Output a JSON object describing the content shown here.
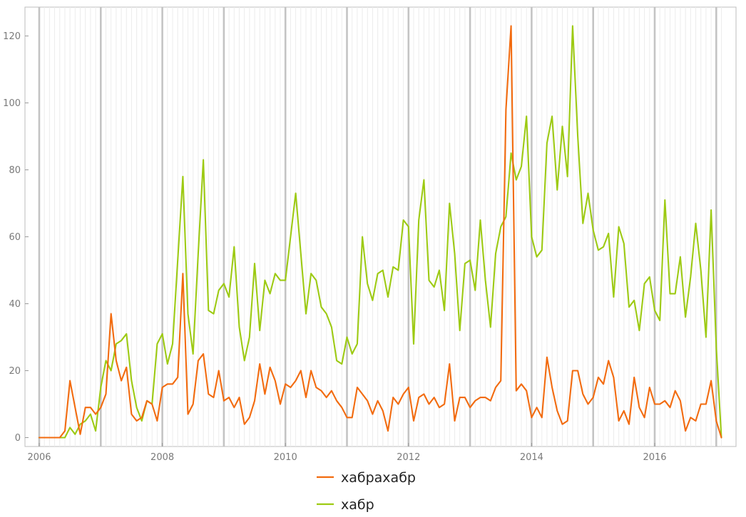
{
  "chart_data": {
    "type": "line",
    "title": "",
    "xlabel": "",
    "ylabel": "",
    "xlim": [
      2006,
      2017.15
    ],
    "ylim": [
      0,
      128
    ],
    "x_ticks": [
      2006,
      2008,
      2010,
      2012,
      2014,
      2016
    ],
    "y_ticks": [
      0,
      20,
      40,
      60,
      80,
      100,
      120
    ],
    "grid": true,
    "legend_position": "bottom-center",
    "x_start": 2006.0,
    "x_step": 0.08333,
    "series": [
      {
        "name": "хабрахабр",
        "color": "#f26b0f",
        "values": [
          0,
          0,
          0,
          0,
          0,
          2,
          17,
          9,
          1,
          9,
          9,
          7,
          9,
          13,
          37,
          23,
          17,
          21,
          7,
          5,
          6,
          11,
          10,
          5,
          15,
          16,
          16,
          18,
          49,
          7,
          10,
          23,
          25,
          13,
          12,
          20,
          11,
          12,
          9,
          12,
          4,
          6,
          11,
          22,
          13,
          21,
          17,
          10,
          16,
          15,
          17,
          20,
          12,
          20,
          15,
          14,
          12,
          14,
          11,
          9,
          6,
          6,
          15,
          13,
          11,
          7,
          11,
          8,
          2,
          12,
          10,
          13,
          15,
          5,
          12,
          13,
          10,
          12,
          9,
          10,
          22,
          5,
          12,
          12,
          9,
          11,
          12,
          12,
          11,
          15,
          17,
          98,
          123,
          14,
          16,
          14,
          6,
          9,
          6,
          24,
          15,
          8,
          4,
          5,
          20,
          20,
          13,
          10,
          12,
          18,
          16,
          23,
          18,
          5,
          8,
          4,
          18,
          9,
          6,
          15,
          10,
          10,
          11,
          9,
          14,
          11,
          2,
          6,
          5,
          10,
          10,
          17,
          5,
          0
        ]
      },
      {
        "name": "хабр",
        "color": "#9dca13",
        "values": [
          0,
          0,
          0,
          0,
          0,
          0,
          3,
          1,
          4,
          5,
          7,
          2,
          15,
          23,
          20,
          28,
          29,
          31,
          17,
          9,
          5,
          11,
          10,
          28,
          31,
          22,
          28,
          53,
          78,
          37,
          25,
          55,
          83,
          38,
          37,
          44,
          46,
          42,
          57,
          33,
          23,
          30,
          52,
          32,
          47,
          43,
          49,
          47,
          47,
          60,
          73,
          55,
          37,
          49,
          47,
          39,
          37,
          33,
          23,
          22,
          30,
          25,
          28,
          60,
          46,
          41,
          49,
          50,
          42,
          51,
          50,
          65,
          63,
          28,
          65,
          77,
          47,
          45,
          50,
          38,
          70,
          55,
          32,
          52,
          53,
          44,
          65,
          47,
          33,
          55,
          63,
          66,
          85,
          77,
          81,
          96,
          60,
          54,
          56,
          88,
          96,
          74,
          93,
          78,
          123,
          90,
          64,
          73,
          62,
          56,
          57,
          61,
          42,
          63,
          58,
          39,
          41,
          32,
          46,
          48,
          38,
          35,
          71,
          43,
          43,
          54,
          36,
          48,
          64,
          50,
          30,
          68,
          27,
          0
        ]
      }
    ]
  }
}
